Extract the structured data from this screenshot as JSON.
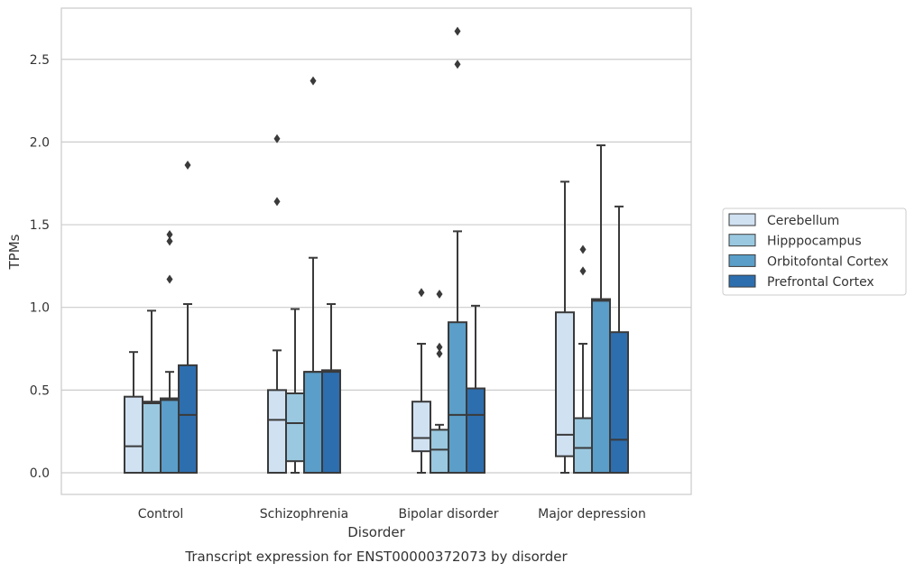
{
  "chart_data": {
    "type": "box",
    "title": "",
    "xlabel": "Disorder",
    "ylabel": "TPMs",
    "caption": "Transcript expression for ENST00000372073 by disorder",
    "ylim": [
      -0.13,
      2.83
    ],
    "yticks": [
      0.0,
      0.5,
      1.0,
      1.5,
      2.0,
      2.5
    ],
    "ytick_labels": [
      "0.0",
      "0.5",
      "1.0",
      "1.5",
      "2.0",
      "2.5"
    ],
    "grid": "horizontal",
    "legend_position": "right",
    "categories": [
      "Control",
      "Schizophrenia",
      "Bipolar disorder",
      "Major depression"
    ],
    "series": [
      {
        "name": "Cerebellum",
        "color": "#d0e1f2",
        "boxes": [
          {
            "q1": 0.0,
            "median": 0.16,
            "q3": 0.46,
            "whisker_low": 0.0,
            "whisker_high": 0.73,
            "outliers": []
          },
          {
            "q1": 0.0,
            "median": 0.32,
            "q3": 0.5,
            "whisker_low": 0.0,
            "whisker_high": 0.74,
            "outliers": [
              1.64,
              2.02
            ]
          },
          {
            "q1": 0.13,
            "median": 0.21,
            "q3": 0.43,
            "whisker_low": 0.0,
            "whisker_high": 0.78,
            "outliers": [
              1.09
            ]
          },
          {
            "q1": 0.1,
            "median": 0.23,
            "q3": 0.97,
            "whisker_low": 0.0,
            "whisker_high": 1.76,
            "outliers": []
          }
        ]
      },
      {
        "name": "Hipppocampus",
        "color": "#9ac8e0",
        "boxes": [
          {
            "q1": 0.0,
            "median": 0.42,
            "q3": 0.43,
            "whisker_low": 0.0,
            "whisker_high": 0.98,
            "outliers": []
          },
          {
            "q1": 0.07,
            "median": 0.3,
            "q3": 0.48,
            "whisker_low": 0.0,
            "whisker_high": 0.99,
            "outliers": []
          },
          {
            "q1": 0.0,
            "median": 0.14,
            "q3": 0.26,
            "whisker_low": 0.0,
            "whisker_high": 0.29,
            "outliers": [
              0.72,
              0.76,
              1.08
            ]
          },
          {
            "q1": 0.0,
            "median": 0.15,
            "q3": 0.33,
            "whisker_low": 0.0,
            "whisker_high": 0.78,
            "outliers": [
              1.22,
              1.35
            ]
          }
        ]
      },
      {
        "name": "Orbitofontal Cortex",
        "color": "#5a9ec9",
        "boxes": [
          {
            "q1": 0.0,
            "median": 0.44,
            "q3": 0.45,
            "whisker_low": 0.0,
            "whisker_high": 0.61,
            "outliers": [
              1.17,
              1.4,
              1.44
            ]
          },
          {
            "q1": 0.0,
            "median": 0.61,
            "q3": 0.61,
            "whisker_low": 0.0,
            "whisker_high": 1.3,
            "outliers": [
              2.37
            ]
          },
          {
            "q1": 0.0,
            "median": 0.35,
            "q3": 0.91,
            "whisker_low": 0.0,
            "whisker_high": 1.46,
            "outliers": [
              2.47,
              2.67
            ]
          },
          {
            "q1": 0.0,
            "median": 1.04,
            "q3": 1.05,
            "whisker_low": 0.0,
            "whisker_high": 1.98,
            "outliers": []
          }
        ]
      },
      {
        "name": "Prefrontal Cortex",
        "color": "#2d6eaf",
        "boxes": [
          {
            "q1": 0.0,
            "median": 0.35,
            "q3": 0.65,
            "whisker_low": 0.0,
            "whisker_high": 1.02,
            "outliers": [
              1.86
            ]
          },
          {
            "q1": 0.0,
            "median": 0.61,
            "q3": 0.62,
            "whisker_low": 0.0,
            "whisker_high": 1.02,
            "outliers": []
          },
          {
            "q1": 0.0,
            "median": 0.35,
            "q3": 0.51,
            "whisker_low": 0.0,
            "whisker_high": 1.01,
            "outliers": []
          },
          {
            "q1": 0.0,
            "median": 0.2,
            "q3": 0.85,
            "whisker_low": 0.0,
            "whisker_high": 1.61,
            "outliers": []
          }
        ]
      }
    ]
  }
}
